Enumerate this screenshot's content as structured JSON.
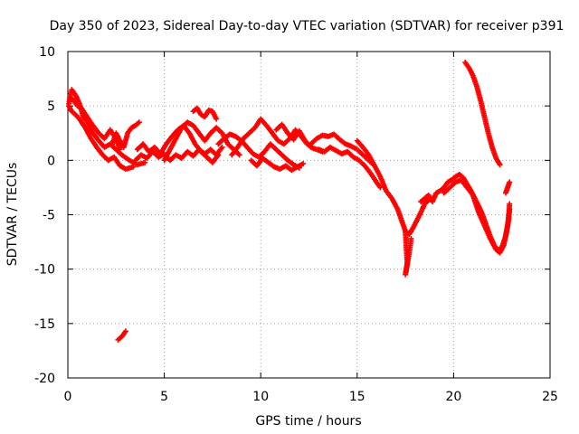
{
  "chart_data": {
    "type": "scatter",
    "title": "Day 350 of 2023, Sidereal Day-to-day VTEC variation (SDTVAR) for receiver p391",
    "xlabel": "GPS time / hours",
    "ylabel": "SDTVAR / TECUs",
    "xlim": [
      0,
      25
    ],
    "ylim": [
      -20,
      10
    ],
    "xticks": [
      0,
      5,
      10,
      15,
      20,
      25
    ],
    "yticks": [
      -20,
      -15,
      -10,
      -5,
      0,
      5,
      10
    ],
    "grid": true,
    "marker": "+",
    "series": [
      {
        "name": "SDTVAR",
        "color": "#ff0000",
        "segments": [
          [
            [
              0.05,
              5.2
            ],
            [
              0.2,
              6.5
            ],
            [
              0.4,
              6.0
            ],
            [
              0.6,
              5.2
            ],
            [
              0.8,
              4.0
            ],
            [
              1.0,
              3.5
            ],
            [
              1.3,
              2.5
            ],
            [
              1.6,
              1.8
            ],
            [
              1.9,
              1.2
            ],
            [
              2.2,
              1.5
            ],
            [
              2.5,
              1.0
            ],
            [
              2.8,
              0.5
            ],
            [
              3.2,
              0.0
            ],
            [
              3.6,
              -0.4
            ],
            [
              4.0,
              -0.2
            ]
          ],
          [
            [
              0.05,
              5.0
            ],
            [
              0.2,
              4.5
            ],
            [
              0.4,
              4.2
            ],
            [
              0.6,
              3.8
            ],
            [
              0.9,
              3.0
            ],
            [
              1.2,
              2.0
            ],
            [
              1.5,
              1.2
            ],
            [
              1.8,
              0.5
            ],
            [
              2.1,
              0.0
            ],
            [
              2.4,
              0.3
            ],
            [
              2.7,
              -0.5
            ],
            [
              3.0,
              -0.8
            ],
            [
              3.4,
              -0.6
            ]
          ],
          [
            [
              0.1,
              5.8
            ],
            [
              0.3,
              5.5
            ],
            [
              0.5,
              5.0
            ],
            [
              0.7,
              4.8
            ],
            [
              1.0,
              4.0
            ],
            [
              1.3,
              3.2
            ],
            [
              1.6,
              2.5
            ],
            [
              1.9,
              2.0
            ],
            [
              2.2,
              2.8
            ],
            [
              2.5,
              2.0
            ],
            [
              2.7,
              1.0
            ]
          ],
          [
            [
              2.3,
              1.5
            ],
            [
              2.5,
              2.5
            ],
            [
              2.7,
              1.8
            ],
            [
              2.9,
              1.2
            ],
            [
              3.1,
              2.5
            ],
            [
              3.3,
              3.0
            ],
            [
              3.5,
              3.2
            ],
            [
              3.7,
              3.5
            ]
          ],
          [
            [
              2.6,
              -16.5
            ],
            [
              2.8,
              -16.2
            ],
            [
              3.0,
              -15.7
            ]
          ],
          [
            [
              3.5,
              0.0
            ],
            [
              3.8,
              0.5
            ],
            [
              4.1,
              0.2
            ],
            [
              4.4,
              0.8
            ],
            [
              4.7,
              0.3
            ],
            [
              5.0,
              0.6
            ],
            [
              5.3,
              0.0
            ],
            [
              5.6,
              0.5
            ],
            [
              5.9,
              0.2
            ],
            [
              6.2,
              0.8
            ],
            [
              6.5,
              0.4
            ],
            [
              6.8,
              1.0
            ],
            [
              7.1,
              0.6
            ],
            [
              7.4,
              1.0
            ],
            [
              7.7,
              0.5
            ],
            [
              8.0,
              1.2
            ]
          ],
          [
            [
              3.6,
              1.0
            ],
            [
              3.9,
              1.5
            ],
            [
              4.2,
              0.8
            ],
            [
              4.5,
              1.2
            ],
            [
              4.8,
              0.6
            ],
            [
              5.1,
              1.5
            ],
            [
              5.4,
              2.2
            ],
            [
              5.7,
              2.8
            ],
            [
              6.0,
              3.2
            ],
            [
              6.3,
              2.5
            ],
            [
              6.6,
              1.5
            ],
            [
              6.9,
              0.8
            ],
            [
              7.2,
              0.3
            ],
            [
              7.5,
              -0.2
            ],
            [
              7.8,
              0.5
            ]
          ],
          [
            [
              5.0,
              0.0
            ],
            [
              5.3,
              1.0
            ],
            [
              5.6,
              2.0
            ],
            [
              5.9,
              3.0
            ],
            [
              6.2,
              3.5
            ],
            [
              6.5,
              3.2
            ],
            [
              6.8,
              2.5
            ],
            [
              7.1,
              1.8
            ],
            [
              7.4,
              2.5
            ],
            [
              7.7,
              3.0
            ],
            [
              8.0,
              2.5
            ],
            [
              8.3,
              1.5
            ],
            [
              8.6,
              1.0
            ],
            [
              8.9,
              0.5
            ]
          ],
          [
            [
              6.5,
              4.5
            ],
            [
              6.7,
              4.8
            ],
            [
              6.9,
              4.2
            ],
            [
              7.1,
              4.0
            ],
            [
              7.3,
              4.6
            ],
            [
              7.5,
              4.5
            ],
            [
              7.7,
              3.8
            ]
          ],
          [
            [
              7.8,
              1.5
            ],
            [
              8.1,
              2.0
            ],
            [
              8.4,
              2.4
            ],
            [
              8.7,
              2.2
            ],
            [
              9.0,
              1.8
            ],
            [
              9.3,
              1.2
            ],
            [
              9.6,
              0.6
            ],
            [
              9.9,
              0.3
            ],
            [
              10.2,
              0.8
            ],
            [
              10.5,
              1.5
            ],
            [
              10.8,
              1.0
            ],
            [
              11.1,
              0.5
            ],
            [
              11.4,
              0.0
            ],
            [
              11.7,
              -0.4
            ],
            [
              12.0,
              -0.7
            ]
          ],
          [
            [
              8.5,
              0.5
            ],
            [
              8.8,
              1.2
            ],
            [
              9.1,
              2.0
            ],
            [
              9.4,
              2.5
            ],
            [
              9.7,
              3.0
            ],
            [
              10.0,
              3.8
            ],
            [
              10.3,
              3.2
            ],
            [
              10.6,
              2.5
            ],
            [
              10.9,
              1.8
            ],
            [
              11.2,
              1.5
            ],
            [
              11.5,
              2.0
            ],
            [
              11.8,
              2.8
            ],
            [
              12.1,
              2.2
            ],
            [
              12.4,
              1.5
            ]
          ],
          [
            [
              9.5,
              0.0
            ],
            [
              9.8,
              -0.5
            ],
            [
              10.1,
              0.2
            ],
            [
              10.4,
              -0.2
            ],
            [
              10.7,
              -0.6
            ],
            [
              11.0,
              -0.8
            ],
            [
              11.3,
              -0.5
            ],
            [
              11.6,
              -0.9
            ],
            [
              11.9,
              -0.6
            ],
            [
              12.2,
              -0.3
            ]
          ],
          [
            [
              10.8,
              2.8
            ],
            [
              11.1,
              3.3
            ],
            [
              11.4,
              2.5
            ],
            [
              11.7,
              1.9
            ],
            [
              12.0,
              2.7
            ],
            [
              12.3,
              1.8
            ],
            [
              12.6,
              1.2
            ],
            [
              12.9,
              1.0
            ],
            [
              13.2,
              0.8
            ]
          ],
          [
            [
              12.6,
              1.5
            ],
            [
              12.9,
              2.0
            ],
            [
              13.2,
              2.3
            ],
            [
              13.5,
              2.2
            ],
            [
              13.8,
              2.4
            ],
            [
              14.1,
              1.9
            ],
            [
              14.4,
              1.5
            ],
            [
              14.7,
              1.3
            ],
            [
              15.0,
              1.0
            ],
            [
              15.3,
              0.5
            ],
            [
              15.6,
              0.0
            ],
            [
              15.9,
              -0.5
            ]
          ],
          [
            [
              13.0,
              1.0
            ],
            [
              13.3,
              0.8
            ],
            [
              13.6,
              1.2
            ],
            [
              13.9,
              0.9
            ],
            [
              14.2,
              0.6
            ],
            [
              14.5,
              0.8
            ],
            [
              14.8,
              0.3
            ],
            [
              15.1,
              0.0
            ],
            [
              15.4,
              -0.5
            ],
            [
              15.7,
              -1.2
            ],
            [
              16.0,
              -2.0
            ],
            [
              16.2,
              -2.5
            ]
          ],
          [
            [
              15.0,
              1.8
            ],
            [
              15.3,
              1.2
            ],
            [
              15.6,
              0.5
            ],
            [
              15.9,
              -0.5
            ],
            [
              16.2,
              -1.5
            ],
            [
              16.5,
              -2.8
            ],
            [
              16.8,
              -3.5
            ],
            [
              17.1,
              -4.5
            ],
            [
              17.3,
              -5.5
            ],
            [
              17.5,
              -6.5
            ],
            [
              17.7,
              -6.8
            ],
            [
              17.9,
              -6.2
            ],
            [
              18.1,
              -5.5
            ],
            [
              18.3,
              -4.8
            ],
            [
              18.5,
              -4.0
            ],
            [
              18.8,
              -3.5
            ]
          ],
          [
            [
              17.5,
              -6.5
            ],
            [
              17.55,
              -8.0
            ],
            [
              17.6,
              -9.5
            ],
            [
              17.5,
              -10.5
            ],
            [
              17.7,
              -8.5
            ],
            [
              17.8,
              -7.2
            ]
          ],
          [
            [
              18.3,
              -3.8
            ],
            [
              18.5,
              -3.5
            ],
            [
              18.7,
              -3.2
            ],
            [
              18.9,
              -3.8
            ],
            [
              19.1,
              -3.0
            ],
            [
              19.3,
              -2.8
            ],
            [
              19.5,
              -2.5
            ],
            [
              19.7,
              -2.0
            ],
            [
              19.9,
              -1.8
            ],
            [
              20.1,
              -1.5
            ],
            [
              20.3,
              -1.3
            ],
            [
              20.5,
              -1.6
            ],
            [
              20.7,
              -2.2
            ],
            [
              20.9,
              -2.8
            ],
            [
              21.1,
              -3.5
            ],
            [
              21.3,
              -4.2
            ],
            [
              21.5,
              -5.0
            ],
            [
              21.7,
              -6.0
            ],
            [
              21.9,
              -7.0
            ],
            [
              22.1,
              -7.8
            ],
            [
              22.3,
              -8.3
            ],
            [
              22.5,
              -8.0
            ],
            [
              22.7,
              -7.0
            ],
            [
              22.85,
              -5.5
            ],
            [
              22.9,
              -4.0
            ]
          ],
          [
            [
              19.5,
              -3.0
            ],
            [
              19.8,
              -2.5
            ],
            [
              20.1,
              -2.0
            ],
            [
              20.4,
              -1.8
            ],
            [
              20.7,
              -2.5
            ],
            [
              21.0,
              -3.2
            ],
            [
              21.3,
              -4.8
            ],
            [
              21.6,
              -6.0
            ],
            [
              21.9,
              -7.2
            ],
            [
              22.2,
              -8.2
            ],
            [
              22.4,
              -8.5
            ],
            [
              22.6,
              -7.8
            ],
            [
              22.8,
              -6.0
            ],
            [
              22.9,
              -4.5
            ]
          ],
          [
            [
              20.6,
              9.0
            ],
            [
              20.8,
              8.5
            ],
            [
              21.0,
              7.8
            ],
            [
              21.2,
              6.8
            ],
            [
              21.4,
              5.5
            ],
            [
              21.6,
              4.0
            ],
            [
              21.8,
              2.5
            ],
            [
              22.0,
              1.2
            ],
            [
              22.2,
              0.2
            ],
            [
              22.4,
              -0.4
            ]
          ],
          [
            [
              22.7,
              -3.0
            ],
            [
              22.8,
              -2.5
            ],
            [
              22.9,
              -2.0
            ]
          ]
        ]
      }
    ]
  }
}
